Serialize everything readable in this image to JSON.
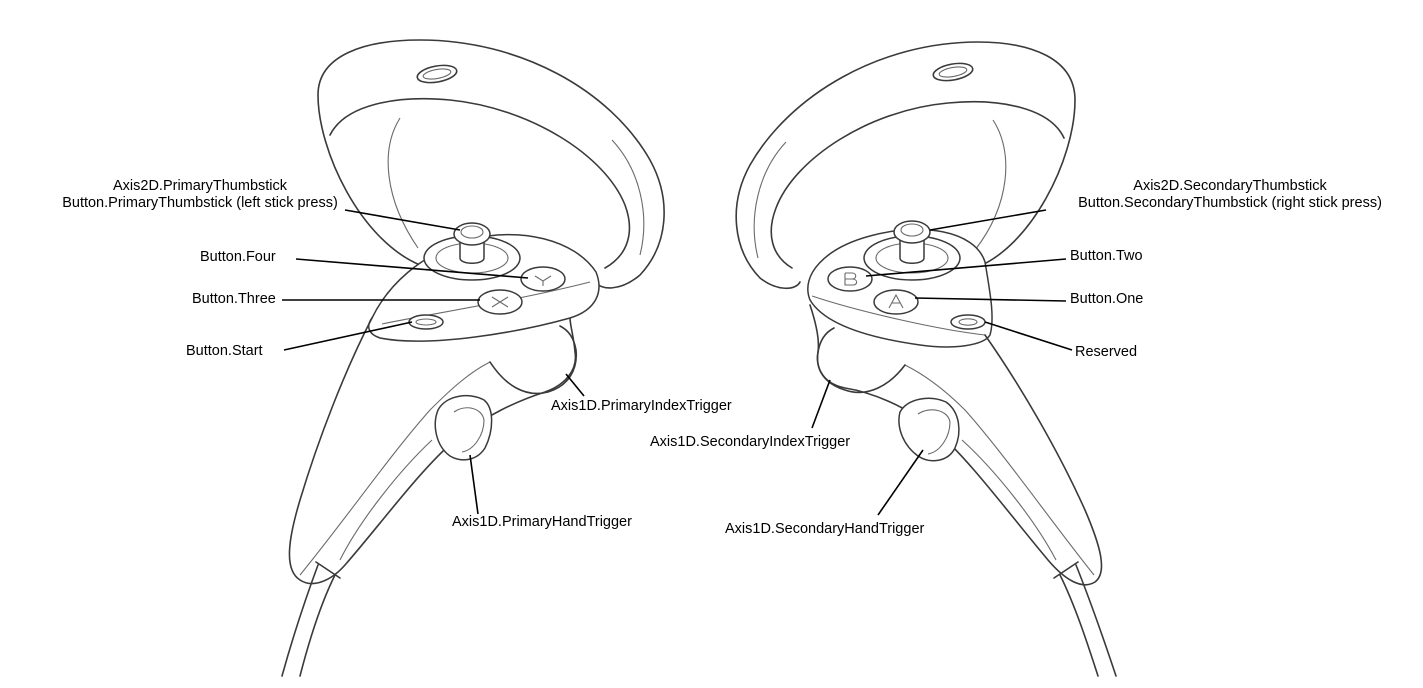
{
  "left_controller": {
    "labels": {
      "thumbstick_axis": "Axis2D.PrimaryThumbstick",
      "thumbstick_press": "Button.PrimaryThumbstick (left stick press)",
      "button_four": "Button.Four",
      "button_three": "Button.Three",
      "button_start": "Button.Start",
      "index_trigger": "Axis1D.PrimaryIndexTrigger",
      "hand_trigger": "Axis1D.PrimaryHandTrigger"
    }
  },
  "right_controller": {
    "labels": {
      "thumbstick_axis": "Axis2D.SecondaryThumbstick",
      "thumbstick_press": "Button.SecondaryThumbstick (right stick press)",
      "button_two": "Button.Two",
      "button_one": "Button.One",
      "reserved": "Reserved",
      "index_trigger": "Axis1D.SecondaryIndexTrigger",
      "hand_trigger": "Axis1D.SecondaryHandTrigger"
    }
  }
}
